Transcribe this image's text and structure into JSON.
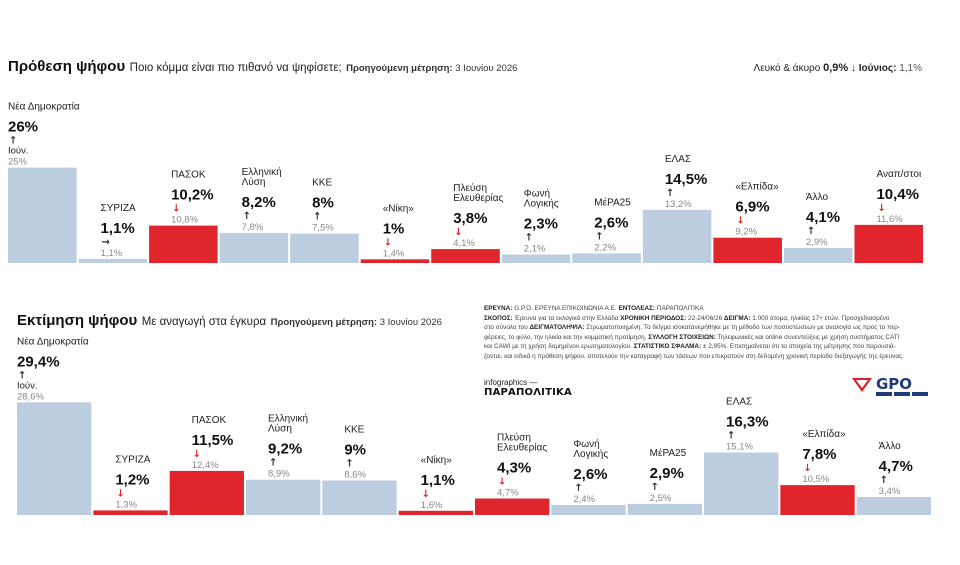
{
  "panel1": {
    "title": "Πρόθεση ψήφου",
    "subtitle": "Ποιο κόμμα είναι πιο πιθανό να ψηφίσετε;",
    "prev_label": "Προηγούμενη μέτρηση:",
    "prev_date": "3 Ιουνίου 2026",
    "blank_label": "Λευκό & άκυρο",
    "blank_value": "0,9%",
    "blank_arrow": "↓",
    "blank_prev_label": "Ιούνιος:",
    "blank_prev_value": "1,1%"
  },
  "panel2": {
    "title": "Εκτίμηση ψήφου",
    "subtitle": "Με αναγωγή στα έγκυρα",
    "prev_label": "Προηγούμενη μέτρηση:",
    "prev_date": "3 Ιουνίου 2026"
  },
  "info": {
    "l1_k1": "ΕΡΕΥΝΑ:",
    "l1_v1": " G.P.O. ΕΡΕΥΝΑ ΕΠΙΚΟΙΝΩΝΙΑ Α.Ε. ",
    "l1_k2": "ΕΝΤΟΛΕΑΣ:",
    "l1_v2": " ΠΑΡΑΠΟΛΙΤΙΚΑ",
    "l2_k1": "ΣΚΟΠΟΣ:",
    "l2_v1": " Έρευνα για τα εκλογικά στην Ελλάδα ",
    "l2_k2": "ΧΡΟΝΙΚΗ ΠΕΡΙΟΔΟΣ:",
    "l2_v2": " 22-24/06/26 ",
    "l2_k3": "ΔΕΙΓΜΑ:",
    "l2_v3": " 1.000 άτομα, ηλικίας 17+ ετών. Προσχεδιασμένο",
    "l3_v1": "στο σύνολο του ",
    "l3_k1": "ΔΕΙΓΜΑΤΟΛΗΨΙΑ:",
    "l3_v2": " Στρωματοποιημένη. Το δείγμα ισοκατανεμήθηκε με τη μέθοδο των ποσοστώσεων με αναλογία ως προς το περ-",
    "l4_v1": "φέρειες, το φύλο, την ηλικία και την κομματική προτίμηση. ",
    "l4_k1": "ΣΥΛΛΟΓΗ ΣΤΟΙΧΕΙΩΝ:",
    "l4_v2": " Τηλεφωνικές και online συνεντεύξεις με χρήση συστήματος CATI",
    "l5_v1": "και CAWI με τη χρήση δομημένου ερωτηματολογίου. ",
    "l5_k1": "ΣΤΑΤΙΣΤΙΚΟ ΣΦΑΛΜΑ:",
    "l5_v2": " ± 2,95%. Επισημαίνεται ότι τα στοιχεία της μέτρησης που παρουσιά-",
    "l6_v1": "ζονται, και ειδικά η πρόθεση ψήφου, αποτελούν την καταγραφή των τάσεων που επικρατούν στη δεδομένη χρονική περίοδο διεξαγωγής της έρευνας."
  },
  "credit": {
    "label": "infographics —",
    "brand": "ΠΑΡΑΠΟΛΙΤΙΚΑ"
  },
  "logo_text": "GPO",
  "colors": {
    "up": "#bccde0",
    "down": "#e0262c",
    "arrow_down": "#e0262c",
    "arrow_neutral": "#333333"
  },
  "chart_data": [
    {
      "type": "bar",
      "title": "Πρόθεση ψήφου",
      "unit": "%",
      "categories": [
        "Νέα Δημοκρατία",
        "ΣΥΡΙΖΑ",
        "ΠΑΣΟΚ",
        "Ελληνική Λύση",
        "ΚΚΕ",
        "«Νίκη»",
        "Πλεύση Ελευθερίας",
        "Φωνή Λογικής",
        "ΜέΡΑ25",
        "ΕΛΑΣ",
        "«Ελπίδα»",
        "Άλλο",
        "Αναπ/στοι"
      ],
      "values": [
        26,
        1.1,
        10.2,
        8.2,
        8,
        1,
        3.8,
        2.3,
        2.6,
        14.5,
        6.9,
        4.1,
        10.4
      ],
      "value_labels": [
        "26%",
        "1,1%",
        "10,2%",
        "8,2%",
        "8%",
        "1%",
        "3,8%",
        "2,3%",
        "2,6%",
        "14,5%",
        "6,9%",
        "4,1%",
        "10,4%"
      ],
      "previous_labels": [
        "25%",
        "1,1%",
        "10,8%",
        "7,8%",
        "7,5%",
        "1,4%",
        "4,1%",
        "2,1%",
        "2,2%",
        "13,2%",
        "9,2%",
        "2,9%",
        "11,6%"
      ],
      "trend": [
        "up",
        "same",
        "down",
        "up",
        "up",
        "down",
        "down",
        "up",
        "up",
        "up",
        "down",
        "up",
        "down"
      ],
      "first_prev_prefix": "Ιούν.",
      "ylim": [
        0,
        30
      ]
    },
    {
      "type": "bar",
      "title": "Εκτίμηση ψήφου",
      "unit": "%",
      "categories": [
        "Νέα Δημοκρατία",
        "ΣΥΡΙΖΑ",
        "ΠΑΣΟΚ",
        "Ελληνική Λύση",
        "ΚΚΕ",
        "«Νίκη»",
        "Πλεύση Ελευθερίας",
        "Φωνή Λογικής",
        "ΜέΡΑ25",
        "ΕΛΑΣ",
        "«Ελπίδα»",
        "Άλλο"
      ],
      "values": [
        29.4,
        1.2,
        11.5,
        9.2,
        9,
        1.1,
        4.3,
        2.6,
        2.9,
        16.3,
        7.8,
        4.7
      ],
      "value_labels": [
        "29,4%",
        "1,2%",
        "11,5%",
        "9,2%",
        "9%",
        "1,1%",
        "4,3%",
        "2,6%",
        "2,9%",
        "16,3%",
        "7,8%",
        "4,7%"
      ],
      "previous_labels": [
        "28,6%",
        "1,3%",
        "12,4%",
        "8,9%",
        "8,6%",
        "1,6%",
        "4,7%",
        "2,4%",
        "2,5%",
        "15,1%",
        "10,5%",
        "3,4%"
      ],
      "trend": [
        "up",
        "down",
        "down",
        "up",
        "up",
        "down",
        "down",
        "up",
        "up",
        "up",
        "down",
        "up"
      ],
      "first_prev_prefix": "Ιούν.",
      "ylim": [
        0,
        30
      ]
    }
  ]
}
